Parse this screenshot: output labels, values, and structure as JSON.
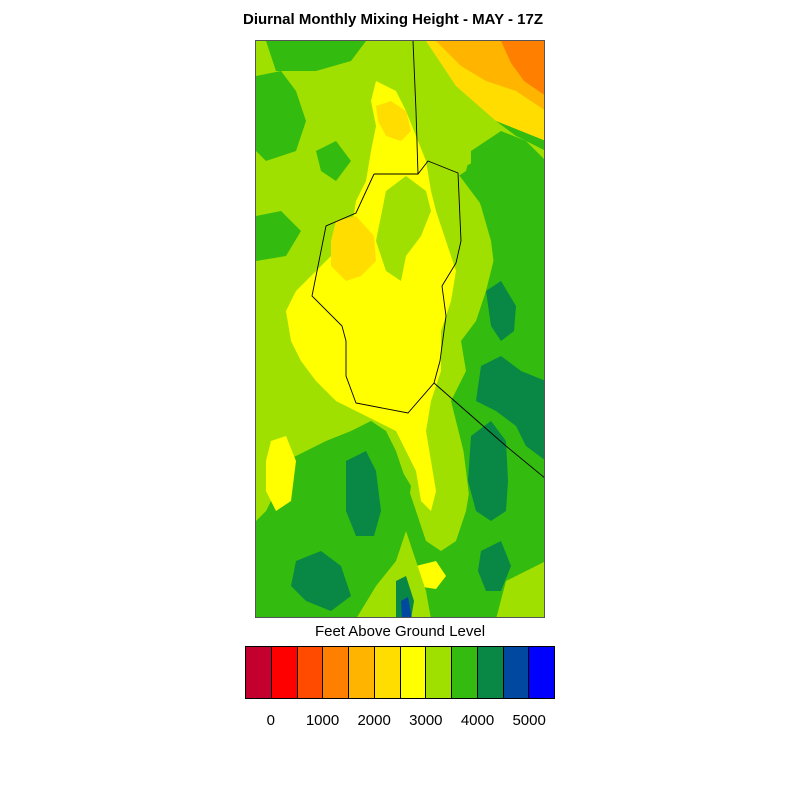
{
  "title": "Diurnal Monthly Mixing Height - MAY - 17Z",
  "legend": {
    "title": "Feet Above Ground Level",
    "colors": [
      "#c4002f",
      "#ff0000",
      "#ff4b00",
      "#ff8000",
      "#ffb400",
      "#ffdd00",
      "#ffff00",
      "#a0e000",
      "#33bb10",
      "#088844",
      "#0048a0",
      "#0000ff"
    ],
    "ticks": [
      "0",
      "1000",
      "2000",
      "3000",
      "4000",
      "5000"
    ]
  },
  "map": {
    "background_color": "#33bb10",
    "level_colors": {
      "yellow_green": "#a0e000",
      "yellow": "#ffff00",
      "gold": "#ffdd00",
      "orange": "#ffb400",
      "dark_orange": "#ff8000",
      "dark_green": "#088844",
      "blue": "#0048a0"
    }
  }
}
